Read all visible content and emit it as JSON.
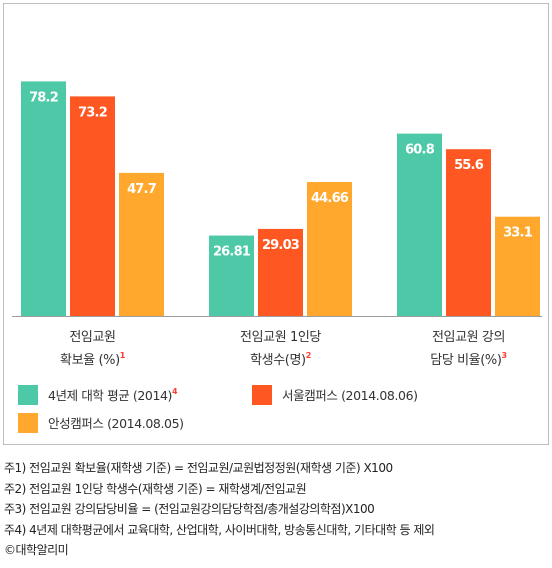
{
  "chart_data": {
    "type": "bar",
    "groups": [
      {
        "label_lines": [
          "전임교원",
          "확보율 (%)"
        ],
        "note": "1"
      },
      {
        "label_lines": [
          "전임교원 1인당",
          "학생수(명)"
        ],
        "note": "2"
      },
      {
        "label_lines": [
          "전임교원 강의",
          "담당 비율(%)"
        ],
        "note": "3"
      }
    ],
    "series": [
      {
        "name": "4년제 대학 평균 (2014)",
        "note": "4",
        "color": "#4dc9a8",
        "values": [
          78.2,
          26.81,
          60.8
        ],
        "value_labels": [
          "78.2",
          "26.81",
          "60.8"
        ]
      },
      {
        "name": "서울캠퍼스 (2014.08.06)",
        "note": "",
        "color": "#ff5722",
        "values": [
          73.2,
          29.03,
          55.6
        ],
        "value_labels": [
          "73.2",
          "29.03",
          "55.6"
        ]
      },
      {
        "name": "안성캠퍼스 (2014.08.05)",
        "note": "",
        "color": "#ffa82d",
        "values": [
          47.7,
          44.66,
          33.1
        ],
        "value_labels": [
          "47.7",
          "44.66",
          "33.1"
        ]
      }
    ],
    "note_color": "#ff3b2f",
    "legend_position": "bottom",
    "grid": false
  },
  "footnotes": [
    "주1) 전임교원 확보율(재학생 기준) = 전임교원/교원법정정원(재학생 기준) X100",
    "주2) 전임교원 1인당 학생수(재학생 기준) = 재학생계/전임교원",
    "주3) 전임교원 강의담당비율 = (전임교원강의담당학점/총개설강의학점)X100",
    "주4) 4년제 대학평균에서 교육대학, 산업대학, 사이버대학, 방송통신대학, 기타대학 등 제외",
    "©대학알리미"
  ]
}
